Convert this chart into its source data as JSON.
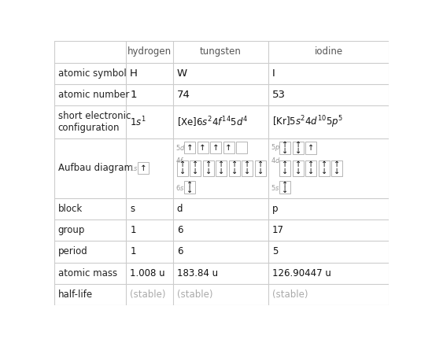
{
  "col_bounds": [
    0.0,
    0.215,
    0.355,
    0.64,
    1.0
  ],
  "row_heights_rel": [
    0.75,
    0.75,
    0.75,
    1.15,
    2.1,
    0.75,
    0.75,
    0.75,
    0.75,
    0.75
  ],
  "headers": [
    "hydrogen",
    "tungsten",
    "iodine"
  ],
  "row_labels": [
    "atomic symbol",
    "atomic number",
    "short electronic\nconfiguration",
    "Aufbau diagram",
    "block",
    "group",
    "period",
    "atomic mass",
    "half-life"
  ],
  "atomic_symbols": [
    "H",
    "W",
    "I"
  ],
  "atomic_numbers": [
    "1",
    "74",
    "53"
  ],
  "configs": [
    "$1s^1$",
    "$[\\mathrm{Xe}]6s^24f^{14}5d^4$",
    "$[\\mathrm{Kr}]5s^24d^{10}5p^5$"
  ],
  "block": [
    "s",
    "d",
    "p"
  ],
  "group": [
    "1",
    "6",
    "17"
  ],
  "period": [
    "1",
    "6",
    "5"
  ],
  "atomic_mass": [
    "1.008 u",
    "183.84 u",
    "126.90447 u"
  ],
  "half_life": [
    "(stable)",
    "(stable)",
    "(stable)"
  ],
  "bg_color": "#ffffff",
  "grid_color": "#cccccc",
  "label_color": "#222222",
  "header_color": "#555555",
  "data_color": "#111111",
  "stable_color": "#aaaaaa",
  "orbital_label_color": "#999999",
  "font_size": 8.5,
  "header_font_size": 8.5,
  "orbital_label_fs": 6.0,
  "orbital_arrow_fs": 7.5
}
